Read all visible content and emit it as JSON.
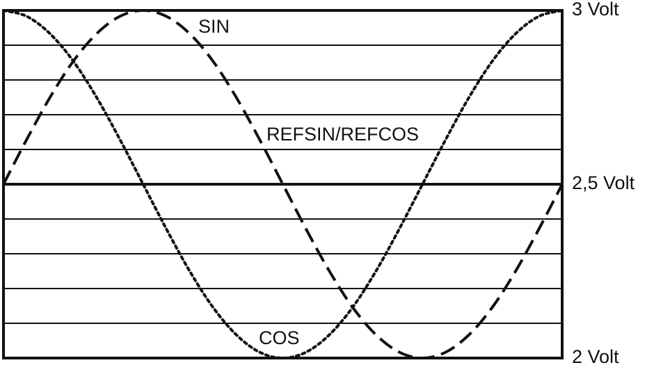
{
  "chart_data": {
    "type": "line",
    "categories": [
      null,
      null,
      null,
      null,
      null,
      null,
      null,
      null,
      null,
      null,
      null,
      null,
      null,
      null,
      null,
      null,
      null,
      null,
      null,
      null,
      null,
      null,
      null,
      null,
      null
    ],
    "series": [
      {
        "name": "SIN",
        "color": "#111111",
        "style": "dashed",
        "values": [
          2.5,
          2.629,
          2.75,
          2.854,
          2.933,
          2.983,
          3,
          2.983,
          2.933,
          2.854,
          2.75,
          2.629,
          2.5,
          2.371,
          2.25,
          2.146,
          2.067,
          2.017,
          2,
          2.017,
          2.067,
          2.146,
          2.25,
          2.371,
          2.5
        ]
      },
      {
        "name": "COS",
        "color": "#111111",
        "style": "dotted",
        "values": [
          3,
          2.983,
          2.933,
          2.854,
          2.75,
          2.629,
          2.5,
          2.371,
          2.25,
          2.146,
          2.067,
          2.017,
          2,
          2.017,
          2.067,
          2.146,
          2.25,
          2.371,
          2.5,
          2.629,
          2.75,
          2.854,
          2.933,
          2.983,
          3
        ]
      }
    ],
    "ylim": [
      2,
      3
    ],
    "yticks": [
      {
        "value": 2,
        "label": "2 Volt"
      },
      {
        "value": 2.1,
        "label": null
      },
      {
        "value": 2.2,
        "label": null
      },
      {
        "value": 2.3,
        "label": null
      },
      {
        "value": 2.4,
        "label": null
      },
      {
        "value": 2.5,
        "label": "2,5 Volt"
      },
      {
        "value": 2.6,
        "label": null
      },
      {
        "value": 2.7,
        "label": null
      },
      {
        "value": 2.8,
        "label": null
      },
      {
        "value": 2.9,
        "label": null
      },
      {
        "value": 3,
        "label": "3 Volt"
      }
    ],
    "grid": true,
    "reference_line": {
      "value": 2.5,
      "label": "REFSIN/REFCOS"
    }
  }
}
